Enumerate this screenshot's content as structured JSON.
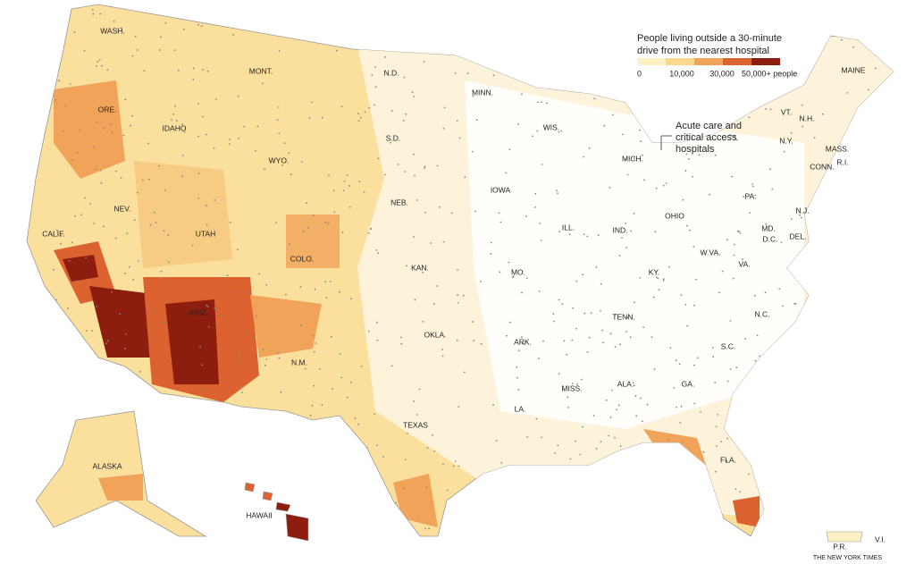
{
  "legend": {
    "title": [
      "People living outside a 30-minute",
      "drive from the nearest hospital"
    ],
    "ticks": [
      "0",
      "10,000",
      "30,000",
      "50,000+ people"
    ],
    "colors": [
      "#fdf0c2",
      "#fbd98a",
      "#f2a35a",
      "#dc6330",
      "#8c1d0f"
    ]
  },
  "annotation": [
    "Acute care and",
    "critical access",
    "hospitals"
  ],
  "states": [
    "WASH.",
    "MONT.",
    "N.D.",
    "MINN.",
    "ORE.",
    "IDAHO",
    "S.D.",
    "WIS.",
    "MICH.",
    "WYO.",
    "N.Y.",
    "VT.",
    "N.H.",
    "MAINE",
    "MASS.",
    "CONN.",
    "R.I.",
    "IOWA",
    "NEB.",
    "NEV.",
    "UTAH",
    "COLO.",
    "CALIF.",
    "KAN.",
    "MO.",
    "ILL.",
    "IND.",
    "OHIO",
    "PA.",
    "N.J.",
    "MD.",
    "D.C.",
    "DEL.",
    "W.VA.",
    "VA.",
    "KY.",
    "TENN.",
    "N.C.",
    "S.C.",
    "OKLA.",
    "ARK.",
    "ARIZ.",
    "N.M.",
    "TEXAS",
    "LA.",
    "MISS.",
    "ALA.",
    "GA.",
    "FLA.",
    "ALASKA",
    "HAWAII",
    "P.R.",
    "V.I."
  ],
  "credit": "THE NEW YORK TIMES"
}
